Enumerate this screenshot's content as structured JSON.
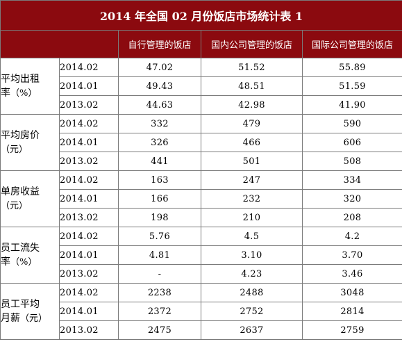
{
  "title": "2014 年全国 02 月份饭店市场统计表 1",
  "columns": [
    "自行管理的饭店",
    "国内公司管理的饭店",
    "国际公司管理的饭店"
  ],
  "groups": [
    {
      "label_line1": "平均出租",
      "label_line2": "率",
      "unit": "（%）",
      "rows": [
        {
          "period": "2014.02",
          "values": [
            "47.02",
            "51.52",
            "55.89"
          ]
        },
        {
          "period": "2014.01",
          "values": [
            "49.43",
            "48.51",
            "51.59"
          ]
        },
        {
          "period": "2013.02",
          "values": [
            "44.63",
            "42.98",
            "41.90"
          ]
        }
      ]
    },
    {
      "label_line1": "平均房价",
      "label_line2": "",
      "unit": "（元）",
      "rows": [
        {
          "period": "2014.02",
          "values": [
            "332",
            "479",
            "590"
          ]
        },
        {
          "period": "2014.01",
          "values": [
            "326",
            "466",
            "606"
          ]
        },
        {
          "period": "2013.02",
          "values": [
            "441",
            "501",
            "508"
          ]
        }
      ]
    },
    {
      "label_line1": "单房收益",
      "label_line2": "",
      "unit": "（元）",
      "rows": [
        {
          "period": "2014.02",
          "values": [
            "163",
            "247",
            "334"
          ]
        },
        {
          "period": "2014.01",
          "values": [
            "166",
            "232",
            "320"
          ]
        },
        {
          "period": "2013.02",
          "values": [
            "198",
            "210",
            "208"
          ]
        }
      ]
    },
    {
      "label_line1": "员工流失",
      "label_line2": "率",
      "unit": "（%）",
      "rows": [
        {
          "period": "2014.02",
          "values": [
            "5.76",
            "4.5",
            "4.2"
          ]
        },
        {
          "period": "2014.01",
          "values": [
            "4.81",
            "3.10",
            "3.70"
          ]
        },
        {
          "period": "2013.02",
          "values": [
            "-",
            "4.23",
            "3.46"
          ]
        }
      ]
    },
    {
      "label_line1": "员工平均",
      "label_line2": "月薪",
      "unit": "（元）",
      "rows": [
        {
          "period": "2014.02",
          "values": [
            "2238",
            "2488",
            "3048"
          ]
        },
        {
          "period": "2014.01",
          "values": [
            "2372",
            "2752",
            "2814"
          ]
        },
        {
          "period": "2013.02",
          "values": [
            "2475",
            "2637",
            "2759"
          ]
        }
      ]
    }
  ],
  "colors": {
    "header_bg": "#8b0a0f",
    "header_text": "#ffffff",
    "border": "#7a7a7a"
  }
}
